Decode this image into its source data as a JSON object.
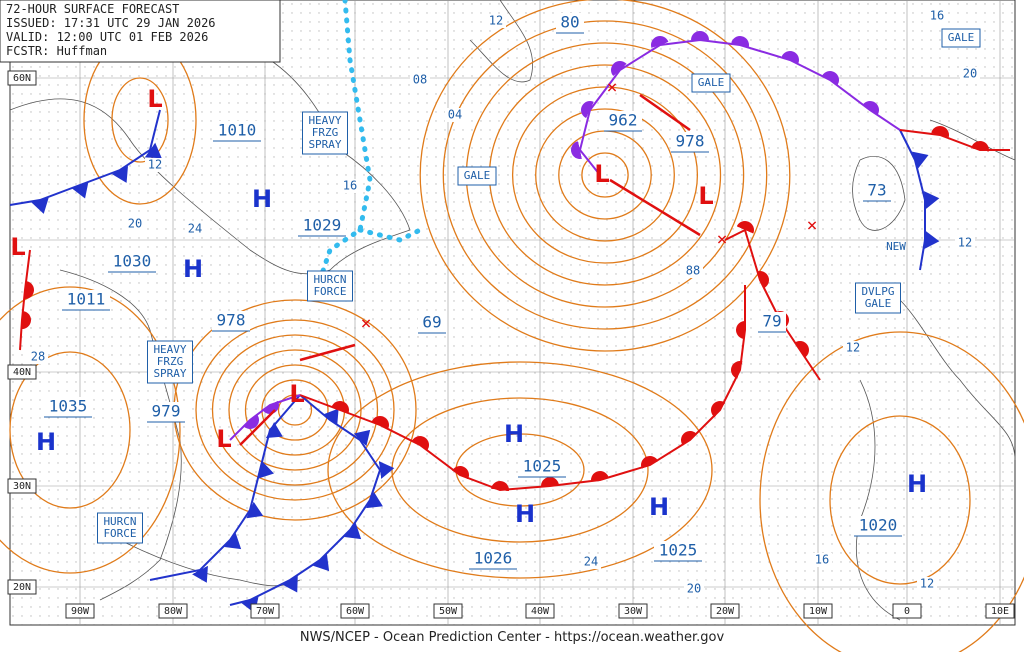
{
  "header": {
    "lines": [
      "72-HOUR SURFACE FORECAST",
      "ISSUED: 17:31 UTC 29 JAN 2026",
      "VALID: 12:00 UTC 01 FEB 2026",
      "FCSTR: Huffman"
    ]
  },
  "footer": "NWS/NCEP - Ocean Prediction Center - https://ocean.weather.gov",
  "lat_labels": [
    "60N",
    "40N",
    "30N",
    "20N"
  ],
  "lon_labels": [
    "90W",
    "80W",
    "70W",
    "60W",
    "50W",
    "40W",
    "30W",
    "20W",
    "10W",
    "0",
    "10E"
  ],
  "pressure_labels": [
    "1010",
    "1030",
    "1011",
    "1035",
    "1029",
    "978",
    "979",
    "962",
    "978",
    "69",
    "1025",
    "1026",
    "1025",
    "1020",
    "73",
    "79",
    "80"
  ],
  "isobar_labels": [
    "12",
    "08",
    "04",
    "16",
    "12",
    "20",
    "24",
    "28",
    "88",
    "12",
    "12",
    "16",
    "20",
    "24",
    "20",
    "16",
    "12"
  ],
  "warnings": [
    [
      "GALE"
    ],
    [
      "GALE"
    ],
    [
      "GALE"
    ],
    [
      "HEAVY",
      "FRZG",
      "SPRAY"
    ],
    [
      "HURCN",
      "FORCE"
    ],
    [
      "HEAVY",
      "FRZG",
      "SPRAY"
    ],
    [
      "HURCN",
      "FORCE"
    ],
    [
      "DVLPG",
      "GALE"
    ]
  ],
  "note": "NEW",
  "highs": [
    "H",
    "H",
    "H",
    "H",
    "H",
    "H",
    "H"
  ],
  "lows": [
    "L",
    "L",
    "L",
    "L",
    "L",
    "L"
  ]
}
